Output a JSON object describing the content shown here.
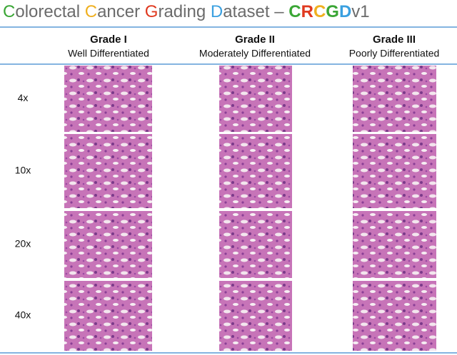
{
  "header": {
    "title": [
      {
        "text": "C",
        "color": "#3aa635",
        "bold": false
      },
      {
        "text": "olorectal ",
        "color": "#6b6b6b",
        "bold": false
      },
      {
        "text": "C",
        "color": "#f0b020",
        "bold": false
      },
      {
        "text": "ancer ",
        "color": "#6b6b6b",
        "bold": false
      },
      {
        "text": "G",
        "color": "#e03a20",
        "bold": false
      },
      {
        "text": "rading ",
        "color": "#6b6b6b",
        "bold": false
      },
      {
        "text": "D",
        "color": "#3aa0e0",
        "bold": false
      },
      {
        "text": "ataset – ",
        "color": "#6b6b6b",
        "bold": false
      },
      {
        "text": "C",
        "color": "#3aa635",
        "bold": true
      },
      {
        "text": "R",
        "color": "#e03a20",
        "bold": true
      },
      {
        "text": "C",
        "color": "#f0b020",
        "bold": true
      },
      {
        "text": "G",
        "color": "#3aa635",
        "bold": true
      },
      {
        "text": "D",
        "color": "#3aa0e0",
        "bold": true
      },
      {
        "text": "v1",
        "color": "#6b6b6b",
        "bold": false
      }
    ]
  },
  "columns": [
    {
      "grade": "Grade I",
      "description": "Well Differentiated"
    },
    {
      "grade": "Grade II",
      "description": "Moderately Differentiated"
    },
    {
      "grade": "Grade III",
      "description": "Poorly Differentiated"
    }
  ],
  "rows": [
    "4x",
    "10x",
    "20x",
    "40x"
  ]
}
